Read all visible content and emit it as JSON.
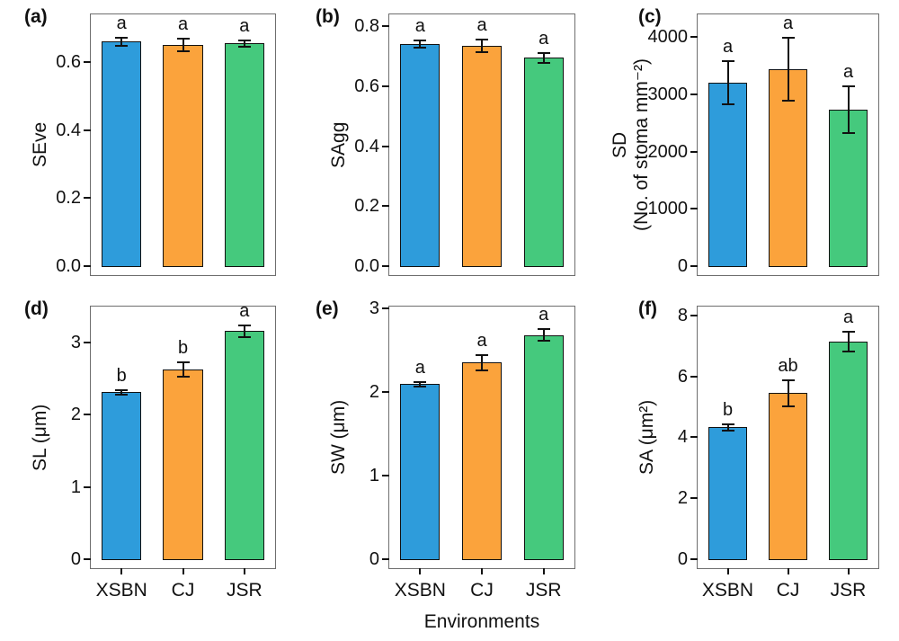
{
  "chart_data": {
    "type": "bar",
    "categories": [
      "XSBN",
      "CJ",
      "JSR"
    ],
    "xaxis_title": "Environments",
    "bar_colors": [
      "#2E9CDB",
      "#FBA33C",
      "#45C97D"
    ],
    "bar_outline_color": "#111111",
    "panel_border_color": "#6e6e6e",
    "legend": "none",
    "panels": [
      {
        "panel_label": "(a)",
        "ylabel_lines": [
          "SEve"
        ],
        "values": [
          0.66,
          0.65,
          0.655
        ],
        "errors": [
          0.012,
          0.018,
          0.009
        ],
        "sig_letters": [
          "a",
          "a",
          "a"
        ],
        "yticks": [
          0,
          0.2,
          0.4,
          0.6
        ],
        "ytick_labels": [
          "0.0",
          "0.2",
          "0.4",
          "0.6"
        ],
        "ylim": [
          0,
          0.74
        ],
        "show_x_labels": false
      },
      {
        "panel_label": "(b)",
        "ylabel_lines": [
          "SAgg"
        ],
        "values": [
          0.74,
          0.735,
          0.695
        ],
        "errors": [
          0.012,
          0.02,
          0.016
        ],
        "sig_letters": [
          "a",
          "a",
          "a"
        ],
        "yticks": [
          0,
          0.2,
          0.4,
          0.6,
          0.8
        ],
        "ytick_labels": [
          "0.0",
          "0.2",
          "0.4",
          "0.6",
          "0.8"
        ],
        "ylim": [
          0,
          0.84
        ],
        "show_x_labels": false
      },
      {
        "panel_label": "(c)",
        "ylabel_lines": [
          "SD",
          "(No. of stoma mm⁻²)"
        ],
        "values": [
          3200,
          3440,
          2730
        ],
        "errors": [
          380,
          550,
          410
        ],
        "sig_letters": [
          "a",
          "a",
          "a"
        ],
        "yticks": [
          0,
          1000,
          2000,
          3000,
          4000
        ],
        "ytick_labels": [
          "0",
          "1000",
          "2000",
          "3000",
          "4000"
        ],
        "ylim": [
          0,
          4400
        ],
        "show_x_labels": false
      },
      {
        "panel_label": "(d)",
        "ylabel_lines": [
          "SL (μm)"
        ],
        "values": [
          2.31,
          2.63,
          3.16
        ],
        "errors": [
          0.035,
          0.1,
          0.08
        ],
        "sig_letters": [
          "b",
          "b",
          "a"
        ],
        "yticks": [
          0,
          1,
          2,
          3
        ],
        "ytick_labels": [
          "0",
          "1",
          "2",
          "3"
        ],
        "ylim": [
          0,
          3.5
        ],
        "show_x_labels": true
      },
      {
        "panel_label": "(e)",
        "ylabel_lines": [
          "SW (μm)"
        ],
        "values": [
          2.09,
          2.35,
          2.68
        ],
        "errors": [
          0.025,
          0.09,
          0.07
        ],
        "sig_letters": [
          "a",
          "a",
          "a"
        ],
        "yticks": [
          0,
          1,
          2,
          3
        ],
        "ytick_labels": [
          "0",
          "1",
          "2",
          "3"
        ],
        "ylim": [
          0,
          3.02
        ],
        "show_x_labels": true
      },
      {
        "panel_label": "(f)",
        "ylabel_lines": [
          "SA (μm²)"
        ],
        "values": [
          4.33,
          5.45,
          7.15
        ],
        "errors": [
          0.1,
          0.42,
          0.33
        ],
        "sig_letters": [
          "b",
          "ab",
          "a"
        ],
        "yticks": [
          0,
          2,
          4,
          6,
          8
        ],
        "ytick_labels": [
          "0",
          "2",
          "4",
          "6",
          "8"
        ],
        "ylim": [
          0,
          8.3
        ],
        "show_x_labels": true
      }
    ]
  }
}
